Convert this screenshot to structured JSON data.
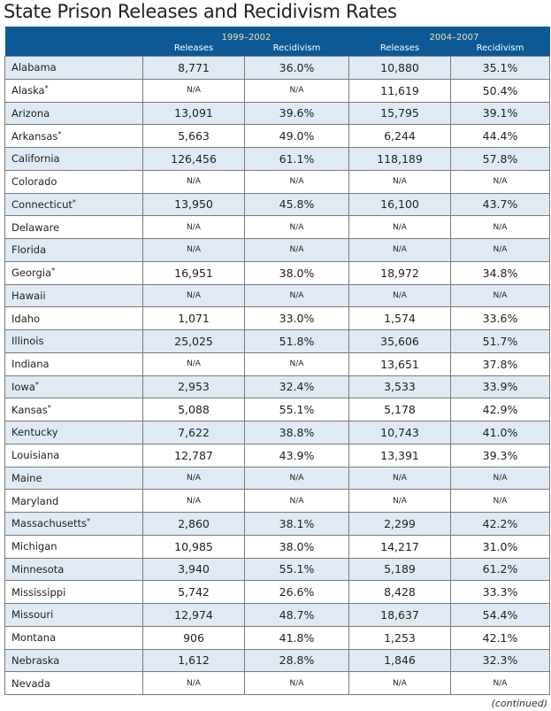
{
  "title": "State Prison Releases and Recidivism Rates",
  "header": {
    "period1": "1999–2002",
    "period2": "2004–2007",
    "releases": "Releases",
    "recidivism": "Recidivism"
  },
  "rows": [
    {
      "state": "Alabama",
      "asterisk": false,
      "r1": "8,771",
      "p1": "36.0%",
      "r2": "10,880",
      "p2": "35.1%"
    },
    {
      "state": "Alaska",
      "asterisk": true,
      "r1": "N/A",
      "p1": "N/A",
      "r2": "11,619",
      "p2": "50.4%"
    },
    {
      "state": "Arizona",
      "asterisk": false,
      "r1": "13,091",
      "p1": "39.6%",
      "r2": "15,795",
      "p2": "39.1%"
    },
    {
      "state": "Arkansas",
      "asterisk": true,
      "r1": "5,663",
      "p1": "49.0%",
      "r2": "6,244",
      "p2": "44.4%"
    },
    {
      "state": "California",
      "asterisk": false,
      "r1": "126,456",
      "p1": "61.1%",
      "r2": "118,189",
      "p2": "57.8%"
    },
    {
      "state": "Colorado",
      "asterisk": false,
      "r1": "N/A",
      "p1": "N/A",
      "r2": "N/A",
      "p2": "N/A"
    },
    {
      "state": "Connecticut",
      "asterisk": true,
      "r1": "13,950",
      "p1": "45.8%",
      "r2": "16,100",
      "p2": "43.7%"
    },
    {
      "state": "Delaware",
      "asterisk": false,
      "r1": "N/A",
      "p1": "N/A",
      "r2": "N/A",
      "p2": "N/A"
    },
    {
      "state": "Florida",
      "asterisk": false,
      "r1": "N/A",
      "p1": "N/A",
      "r2": "N/A",
      "p2": "N/A"
    },
    {
      "state": "Georgia",
      "asterisk": true,
      "r1": "16,951",
      "p1": "38.0%",
      "r2": "18,972",
      "p2": "34.8%"
    },
    {
      "state": "Hawaii",
      "asterisk": false,
      "r1": "N/A",
      "p1": "N/A",
      "r2": "N/A",
      "p2": "N/A"
    },
    {
      "state": "Idaho",
      "asterisk": false,
      "r1": "1,071",
      "p1": "33.0%",
      "r2": "1,574",
      "p2": "33.6%"
    },
    {
      "state": "Illinois",
      "asterisk": false,
      "r1": "25,025",
      "p1": "51.8%",
      "r2": "35,606",
      "p2": "51.7%"
    },
    {
      "state": "Indiana",
      "asterisk": false,
      "r1": "N/A",
      "p1": "N/A",
      "r2": "13,651",
      "p2": "37.8%"
    },
    {
      "state": "Iowa",
      "asterisk": true,
      "r1": "2,953",
      "p1": "32.4%",
      "r2": "3,533",
      "p2": "33.9%"
    },
    {
      "state": "Kansas",
      "asterisk": true,
      "r1": "5,088",
      "p1": "55.1%",
      "r2": "5,178",
      "p2": "42.9%"
    },
    {
      "state": "Kentucky",
      "asterisk": false,
      "r1": "7,622",
      "p1": "38.8%",
      "r2": "10,743",
      "p2": "41.0%"
    },
    {
      "state": "Louisiana",
      "asterisk": false,
      "r1": "12,787",
      "p1": "43.9%",
      "r2": "13,391",
      "p2": "39.3%"
    },
    {
      "state": "Maine",
      "asterisk": false,
      "r1": "N/A",
      "p1": "N/A",
      "r2": "N/A",
      "p2": "N/A"
    },
    {
      "state": "Maryland",
      "asterisk": false,
      "r1": "N/A",
      "p1": "N/A",
      "r2": "N/A",
      "p2": "N/A"
    },
    {
      "state": "Massachusetts",
      "asterisk": true,
      "r1": "2,860",
      "p1": "38.1%",
      "r2": "2,299",
      "p2": "42.2%"
    },
    {
      "state": "Michigan",
      "asterisk": false,
      "r1": "10,985",
      "p1": "38.0%",
      "r2": "14,217",
      "p2": "31.0%"
    },
    {
      "state": "Minnesota",
      "asterisk": false,
      "r1": "3,940",
      "p1": "55.1%",
      "r2": "5,189",
      "p2": "61.2%"
    },
    {
      "state": "Mississippi",
      "asterisk": false,
      "r1": "5,742",
      "p1": "26.6%",
      "r2": "8,428",
      "p2": "33.3%"
    },
    {
      "state": "Missouri",
      "asterisk": false,
      "r1": "12,974",
      "p1": "48.7%",
      "r2": "18,637",
      "p2": "54.4%"
    },
    {
      "state": "Montana",
      "asterisk": false,
      "r1": "906",
      "p1": "41.8%",
      "r2": "1,253",
      "p2": "42.1%"
    },
    {
      "state": "Nebraska",
      "asterisk": false,
      "r1": "1,612",
      "p1": "28.8%",
      "r2": "1,846",
      "p2": "32.3%"
    },
    {
      "state": "Nevada",
      "asterisk": false,
      "r1": "N/A",
      "p1": "N/A",
      "r2": "N/A",
      "p2": "N/A"
    }
  ],
  "footer": "(continued)",
  "colors": {
    "header_bg": "#0c5996",
    "shade": "#dfeaf4",
    "period_label": "#e8e2a0"
  }
}
